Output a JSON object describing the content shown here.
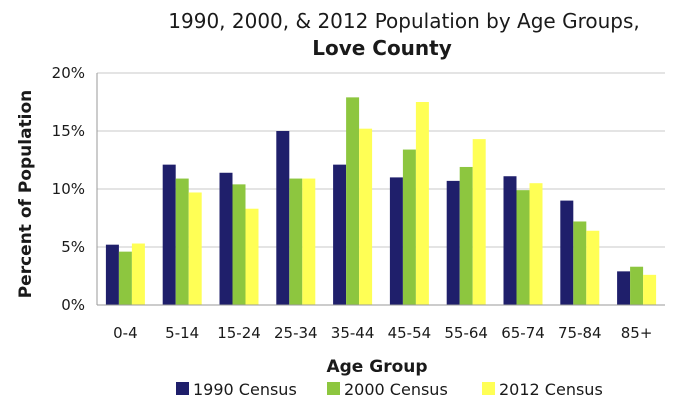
{
  "chart_data": {
    "type": "bar",
    "title": "1990, 2000, & 2012 Population by Age Groups,",
    "subtitle": "Love County",
    "xlabel": "Age Group",
    "ylabel": "Percent of Population",
    "ylim": [
      0,
      20
    ],
    "yticks": [
      "0%",
      "5%",
      "10%",
      "15%",
      "20%"
    ],
    "categories": [
      "0-4",
      "5-14",
      "15-24",
      "25-34",
      "35-44",
      "45-54",
      "55-64",
      "65-74",
      "75-84",
      "85+"
    ],
    "series": [
      {
        "name": "1990 Census",
        "color": "#1f1f6b",
        "values": [
          5.2,
          12.1,
          11.4,
          15.0,
          12.1,
          11.0,
          10.7,
          11.1,
          9.0,
          2.9
        ]
      },
      {
        "name": "2000 Census",
        "color": "#8dc63f",
        "values": [
          4.6,
          10.9,
          10.4,
          10.9,
          17.9,
          13.4,
          11.9,
          9.9,
          7.2,
          3.3
        ]
      },
      {
        "name": "2012 Census",
        "color": "#ffff55",
        "values": [
          5.3,
          9.7,
          8.3,
          10.9,
          15.2,
          17.5,
          14.3,
          10.5,
          6.4,
          2.6
        ]
      }
    ],
    "grid": true,
    "legend_position": "bottom"
  }
}
